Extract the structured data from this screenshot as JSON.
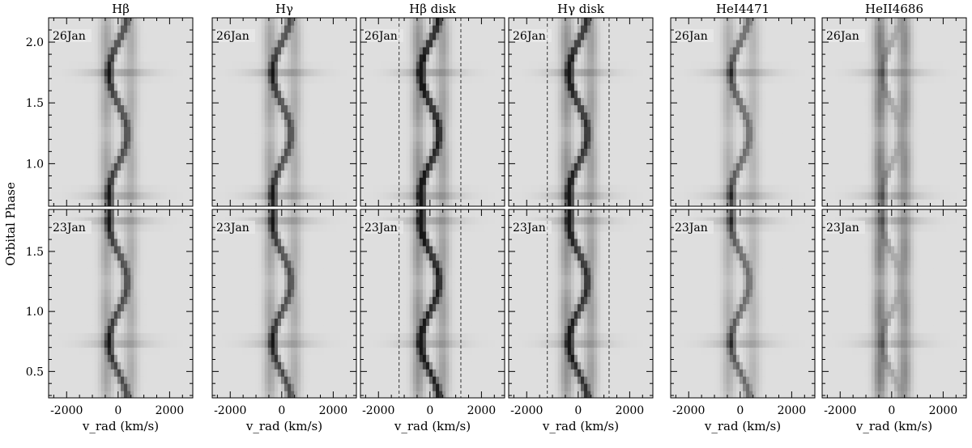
{
  "chart_data": {
    "type": "heatmap",
    "colormap": "grayscale",
    "columns": [
      {
        "title": "Hβ",
        "disk_band": false,
        "feature_weights": [
          1.0,
          0.55
        ]
      },
      {
        "title": "Hγ",
        "disk_band": false,
        "feature_weights": [
          1.0,
          0.55
        ]
      },
      {
        "title": "Hβ disk",
        "disk_band": true,
        "feature_weights": [
          1.25,
          0.7
        ]
      },
      {
        "title": "Hγ disk",
        "disk_band": true,
        "feature_weights": [
          1.15,
          0.7
        ]
      },
      {
        "title": "HeI4471",
        "disk_band": false,
        "feature_weights": [
          0.8,
          0.45
        ]
      },
      {
        "title": "HeII4686",
        "disk_band": false,
        "feature_weights": [
          0.35,
          0.9
        ]
      }
    ],
    "rows": [
      {
        "night": "26Jan",
        "ylim": [
          0.65,
          2.2
        ],
        "yticks": [
          1.0,
          1.5,
          2.0
        ],
        "ytick_labels": [
          "1.0",
          "1.5",
          "2.0"
        ]
      },
      {
        "night": "23Jan",
        "ylim": [
          0.28,
          1.85
        ],
        "yticks": [
          0.5,
          1.0,
          1.5
        ],
        "ytick_labels": [
          "0.5",
          "1.0",
          "1.5"
        ]
      }
    ],
    "xlim": [
      -2700,
      2900
    ],
    "xticks": [
      -2000,
      0,
      2000
    ],
    "xtick_labels": [
      "-2000",
      "0",
      "2000"
    ],
    "disk_band_edges_kms": [
      -1200,
      1200
    ],
    "s_wave_amplitude_kms": 350,
    "xlabel": "v_rad  (km/s)",
    "ylabel": "Orbital  Phase"
  }
}
